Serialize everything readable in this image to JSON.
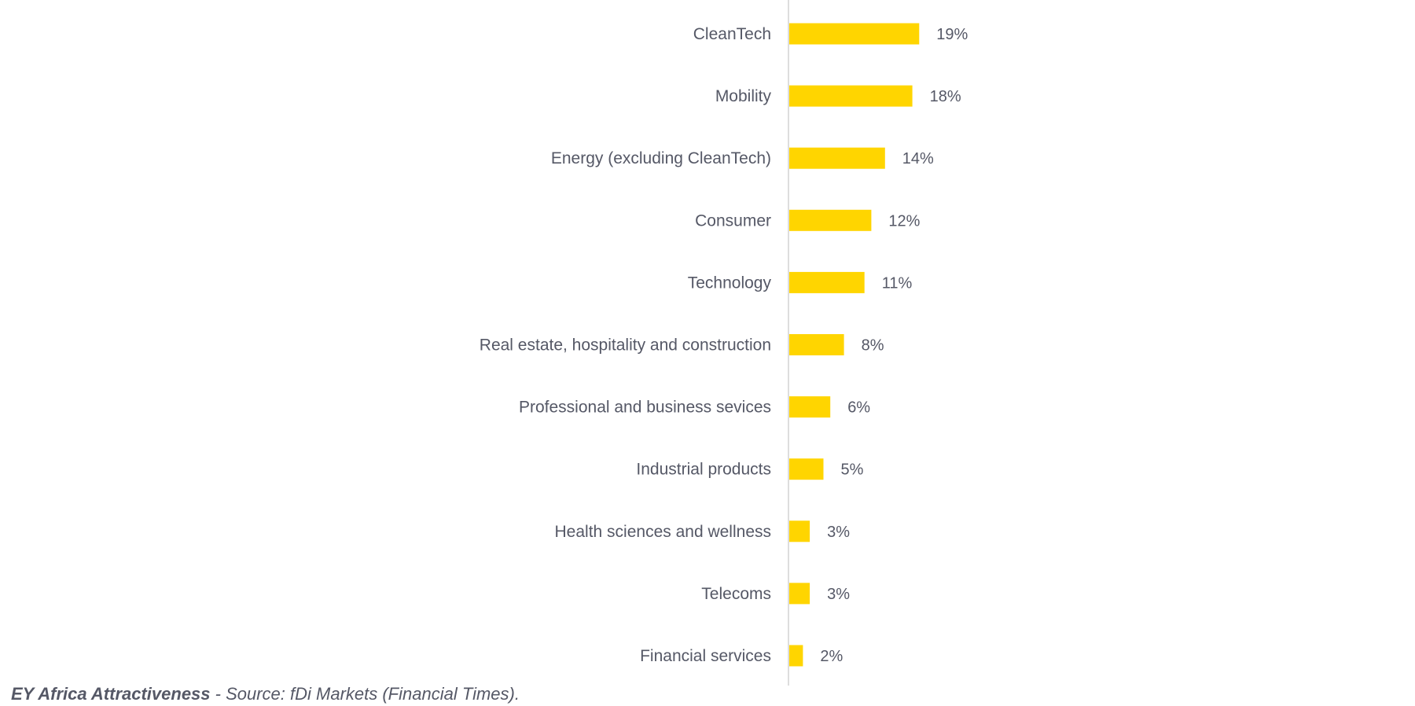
{
  "chart_data": {
    "type": "bar",
    "orientation": "horizontal",
    "categories": [
      "CleanTech",
      "Mobility",
      "Energy (excluding CleanTech)",
      "Consumer",
      "Technology",
      "Real estate, hospitality and construction",
      "Professional and business sevices",
      "Industrial products",
      "Health sciences and wellness",
      "Telecoms",
      "Financial services"
    ],
    "values": [
      19,
      18,
      14,
      12,
      11,
      8,
      6,
      5,
      3,
      3,
      2
    ],
    "value_labels": [
      "19%",
      "18%",
      "14%",
      "12%",
      "11%",
      "8%",
      "6%",
      "5%",
      "3%",
      "3%",
      "2%"
    ],
    "unit": "%",
    "xlim": [
      0,
      20
    ],
    "grid": false,
    "bar_color": "#FFD500",
    "axis_color": "#dddddd",
    "text_color": "#555866"
  },
  "footnote": {
    "bold": "EY Africa Attractiveness",
    "rest": " - Source: fDi Markets (Financial Times)."
  }
}
